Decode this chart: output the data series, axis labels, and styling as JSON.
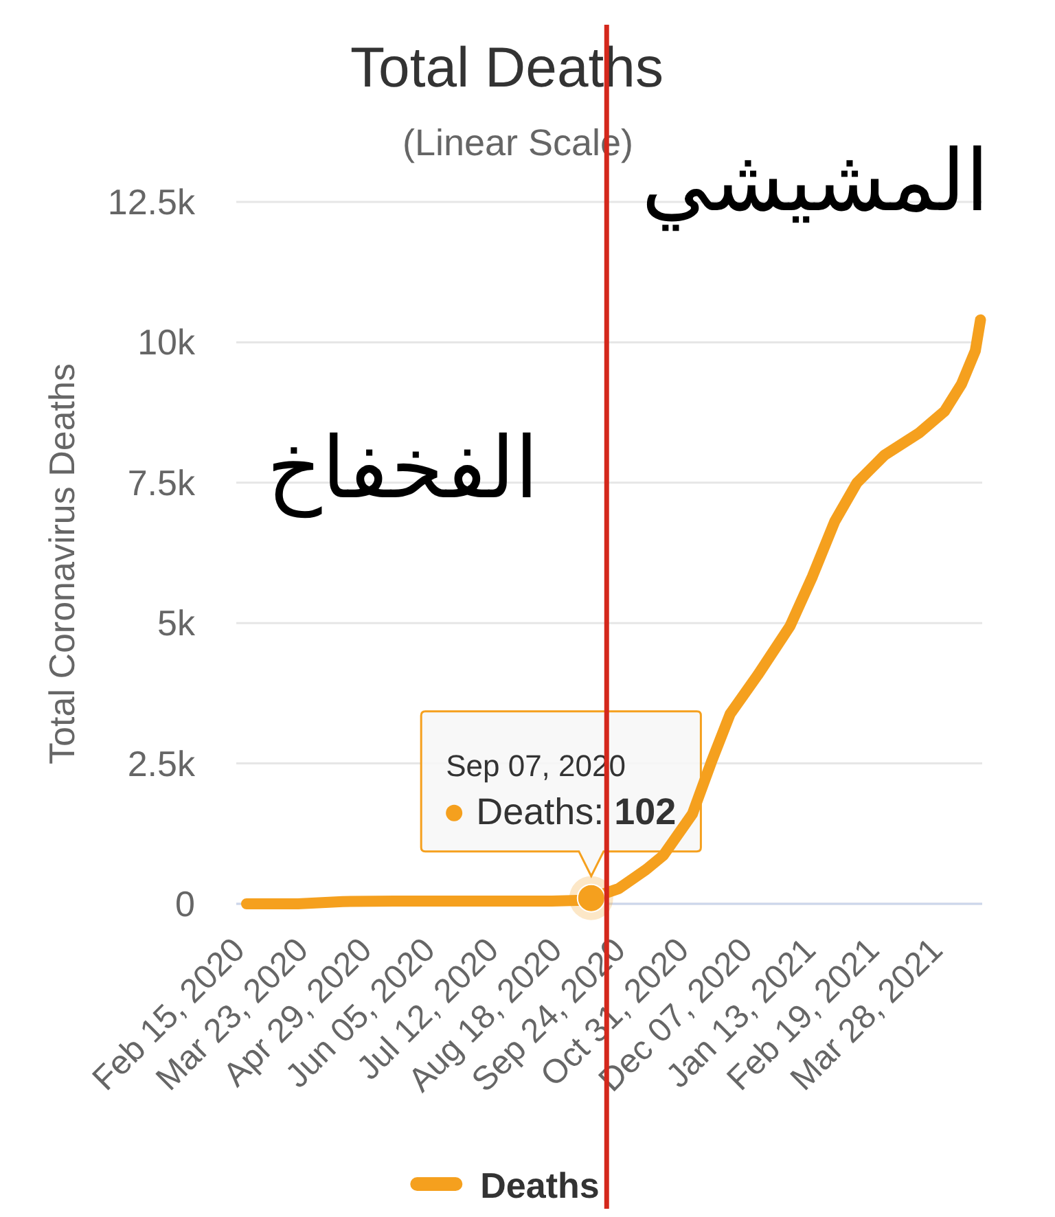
{
  "chart_data": {
    "type": "line",
    "title": "Total Deaths",
    "subtitle": "(Linear Scale)",
    "ylabel": "Total Coronavirus Deaths",
    "xlim": [
      "2020-02-13",
      "2021-04-23"
    ],
    "xticks": [
      {
        "value": "2020-02-15",
        "label": "Feb 15, 2020"
      },
      {
        "value": "2020-03-23",
        "label": "Mar 23, 2020"
      },
      {
        "value": "2020-04-29",
        "label": "Apr 29, 2020"
      },
      {
        "value": "2020-06-05",
        "label": "Jun 05, 2020"
      },
      {
        "value": "2020-07-12",
        "label": "Jul 12, 2020"
      },
      {
        "value": "2020-08-18",
        "label": "Aug 18, 2020"
      },
      {
        "value": "2020-09-24",
        "label": "Sep 24, 2020"
      },
      {
        "value": "2020-10-31",
        "label": "Oct 31, 2020"
      },
      {
        "value": "2020-12-07",
        "label": "Dec 07, 2020"
      },
      {
        "value": "2021-01-13",
        "label": "Jan 13, 2021"
      },
      {
        "value": "2021-02-19",
        "label": "Feb 19, 2021"
      },
      {
        "value": "2021-03-28",
        "label": "Mar 28, 2021"
      }
    ],
    "ylim": [
      0,
      12500
    ],
    "yticks": [
      0,
      {
        "value": 2500,
        "label": "2.5k"
      },
      {
        "value": 5000,
        "label": "5k"
      },
      {
        "value": 7500,
        "label": "7.5k"
      },
      {
        "value": 10000,
        "label": "10k"
      },
      {
        "value": 12500,
        "label": "12.5k"
      }
    ],
    "grid": "y",
    "legend": "bottom",
    "series": [
      {
        "name": "Deaths",
        "color": "#f5a01e",
        "x": [
          "2020-02-19",
          "2020-03-20",
          "2020-04-15",
          "2020-05-15",
          "2020-06-15",
          "2020-07-15",
          "2020-08-15",
          "2020-08-30",
          "2020-09-07",
          "2020-09-23",
          "2020-10-09",
          "2020-10-19",
          "2020-11-05",
          "2020-11-16",
          "2020-11-27",
          "2020-12-13",
          "2021-01-01",
          "2021-01-14",
          "2021-01-27",
          "2021-02-09",
          "2021-02-25",
          "2021-03-17",
          "2021-04-01",
          "2021-04-11",
          "2021-04-19",
          "2021-04-22"
        ],
        "values": [
          0,
          0,
          40,
          50,
          50,
          50,
          50,
          60,
          102,
          270,
          610,
          860,
          1600,
          2520,
          3380,
          4070,
          4950,
          5830,
          6810,
          7500,
          7990,
          8380,
          8770,
          9260,
          9850,
          10400
        ]
      }
    ],
    "ref_lines": [
      {
        "axis": "x",
        "value": "2020-09-16",
        "color": "#d4281c"
      }
    ],
    "annotations": [
      {
        "text": "Sep 07, 2020\nDeaths: 102",
        "x": "2020-09-07",
        "y": 102
      },
      "المشيشي",
      "الفخفاخ"
    ]
  }
}
